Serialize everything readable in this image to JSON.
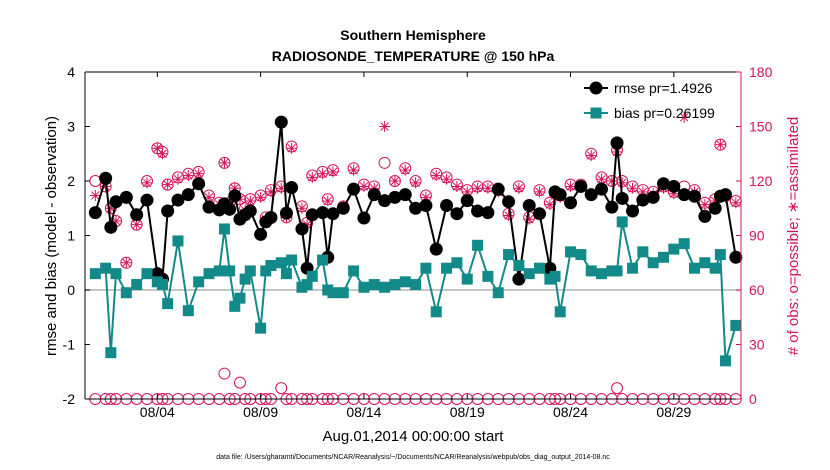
{
  "chart_data": {
    "type": "line",
    "title": "Southern Hemisphere",
    "subtitle": "RADIOSONDE_TEMPERATURE @ 150 hPa",
    "xlabel": "Aug.01,2014 00:00:00 start",
    "ylabel": "rmse and bias (model - observation)",
    "ylabel_right": "# of obs: o=possible; ∗=assimilated",
    "footnote": "data file: /Users/gharamti/Documents/NCAR/Reanalysis/~/Documents/NCAR/Reanalysis/webpub/obs_diag_output_2014-08.nc",
    "xlim": [
      0.5,
      32.25
    ],
    "ylim": [
      -2,
      4
    ],
    "ylim_right": [
      0,
      180
    ],
    "x_ticks": [
      4,
      9,
      14,
      19,
      24,
      29
    ],
    "x_tick_labels": [
      "08/04",
      "08/09",
      "08/14",
      "08/19",
      "08/24",
      "08/29"
    ],
    "y_ticks": [
      -2,
      -1,
      0,
      1,
      2,
      3,
      4
    ],
    "y_tick_labels": [
      "-2",
      "-1",
      "0",
      "1",
      "2",
      "3",
      "4"
    ],
    "y2_ticks": [
      0,
      30,
      60,
      90,
      120,
      150,
      180
    ],
    "y2_tick_labels": [
      "0",
      "30",
      "60",
      "90",
      "120",
      "150",
      "180"
    ],
    "colors": {
      "rmse": "#000000",
      "bias": "#138a8a",
      "obs": "#d4145a",
      "zero_line": "#b3b3b3"
    },
    "series": [
      {
        "name": "rmse",
        "legend": "rmse pr=1.4926",
        "color": "#000000",
        "marker": "circle",
        "x": [
          1.0,
          1.5,
          1.75,
          2.0,
          2.5,
          3.0,
          3.5,
          4.0,
          4.25,
          4.5,
          5.0,
          5.5,
          6.0,
          6.5,
          7.0,
          7.25,
          7.5,
          7.75,
          8.0,
          8.25,
          8.5,
          9.0,
          9.25,
          9.5,
          10.0,
          10.25,
          10.5,
          11.0,
          11.25,
          11.5,
          12.0,
          12.25,
          12.5,
          13.0,
          13.5,
          14.0,
          14.5,
          15.0,
          15.5,
          16.0,
          16.5,
          17.0,
          17.5,
          18.0,
          18.5,
          19.0,
          19.5,
          20.0,
          20.5,
          21.0,
          21.5,
          22.0,
          22.5,
          23.0,
          23.25,
          23.5,
          24.0,
          24.5,
          25.0,
          25.5,
          26.0,
          26.25,
          26.5,
          27.0,
          27.5,
          28.0,
          28.5,
          29.0,
          29.5,
          30.0,
          30.5,
          31.0,
          31.25,
          31.5,
          32.0
        ],
        "values": [
          1.42,
          2.05,
          1.15,
          1.62,
          1.7,
          1.38,
          1.65,
          0.3,
          0.2,
          1.45,
          1.65,
          1.75,
          1.95,
          1.52,
          1.47,
          1.58,
          1.48,
          1.73,
          1.3,
          1.38,
          1.45,
          1.02,
          1.25,
          1.33,
          3.08,
          1.41,
          1.88,
          1.12,
          0.4,
          1.38,
          1.42,
          0.6,
          1.4,
          1.5,
          1.85,
          1.32,
          1.75,
          1.64,
          1.7,
          1.75,
          1.5,
          1.55,
          0.75,
          1.55,
          1.4,
          1.64,
          1.45,
          1.42,
          1.85,
          1.62,
          0.2,
          1.55,
          1.4,
          0.4,
          1.8,
          1.75,
          1.6,
          1.9,
          1.75,
          1.85,
          1.52,
          2.7,
          1.68,
          1.45,
          1.65,
          1.7,
          1.95,
          1.9,
          1.75,
          1.72,
          1.35,
          1.5,
          1.72,
          1.75,
          0.6
        ]
      },
      {
        "name": "bias",
        "legend": "bias pr=0.26199",
        "color": "#138a8a",
        "marker": "square",
        "x": [
          1.0,
          1.5,
          1.75,
          2.0,
          2.5,
          3.0,
          3.5,
          4.0,
          4.25,
          4.5,
          5.0,
          5.5,
          6.0,
          6.5,
          7.0,
          7.25,
          7.5,
          7.75,
          8.0,
          8.25,
          8.5,
          9.0,
          9.25,
          9.5,
          10.0,
          10.25,
          10.5,
          11.0,
          11.25,
          11.5,
          12.0,
          12.25,
          12.5,
          13.0,
          13.5,
          14.0,
          14.5,
          15.0,
          15.5,
          16.0,
          16.5,
          17.0,
          17.5,
          18.0,
          18.5,
          19.0,
          19.5,
          20.0,
          20.5,
          21.0,
          21.5,
          22.0,
          22.5,
          23.0,
          23.25,
          23.5,
          24.0,
          24.5,
          25.0,
          25.5,
          26.0,
          26.25,
          26.5,
          27.0,
          27.5,
          28.0,
          28.5,
          29.0,
          29.5,
          30.0,
          30.5,
          31.0,
          31.25,
          31.5,
          32.0
        ],
        "values": [
          0.3,
          0.4,
          -1.15,
          0.3,
          -0.05,
          0.1,
          0.3,
          0.15,
          0.1,
          -0.25,
          0.9,
          -0.38,
          0.15,
          0.3,
          0.35,
          1.12,
          0.35,
          -0.3,
          -0.15,
          0.2,
          0.35,
          -0.7,
          0.35,
          0.45,
          0.5,
          0.3,
          0.55,
          0.05,
          0.1,
          0.25,
          0.55,
          0.0,
          -0.05,
          -0.05,
          0.35,
          0.05,
          0.1,
          0.05,
          0.1,
          0.15,
          0.1,
          0.4,
          -0.4,
          0.4,
          0.5,
          0.2,
          0.82,
          0.25,
          -0.05,
          0.65,
          0.45,
          0.3,
          0.4,
          0.2,
          0.25,
          -0.4,
          0.7,
          0.65,
          0.35,
          0.3,
          0.35,
          0.35,
          1.25,
          0.4,
          0.7,
          0.5,
          0.6,
          0.75,
          0.85,
          0.4,
          0.5,
          0.4,
          0.65,
          -1.3,
          -0.65
        ]
      },
      {
        "name": "obs_possible",
        "color": "#d4145a",
        "marker": "open-circle",
        "x": [
          1.0,
          1.5,
          1.75,
          2.0,
          2.5,
          3.0,
          3.5,
          4.0,
          4.25,
          4.5,
          5.0,
          5.5,
          6.0,
          6.5,
          7.0,
          7.25,
          7.5,
          7.75,
          8.0,
          8.25,
          8.5,
          9.0,
          9.25,
          9.5,
          10.0,
          10.25,
          10.5,
          11.0,
          11.25,
          11.5,
          12.0,
          12.25,
          12.5,
          13.0,
          13.5,
          14.0,
          14.5,
          15.0,
          15.5,
          16.0,
          16.5,
          17.0,
          17.5,
          18.0,
          18.5,
          19.0,
          19.5,
          20.0,
          20.5,
          21.0,
          21.5,
          22.0,
          22.5,
          23.0,
          23.25,
          23.5,
          24.0,
          24.5,
          25.0,
          25.5,
          26.0,
          26.25,
          26.5,
          27.0,
          27.5,
          28.0,
          28.5,
          29.0,
          29.5,
          30.0,
          30.5,
          31.0,
          31.25,
          31.5,
          32.0
        ],
        "values": [
          120,
          117,
          105,
          98,
          75,
          96,
          120,
          138,
          136,
          118,
          122,
          124,
          125,
          112,
          108,
          130,
          108,
          116,
          110,
          105,
          110,
          112,
          100,
          115,
          117,
          100,
          139,
          106,
          97,
          123,
          125,
          110,
          126,
          106,
          127,
          118,
          117,
          130,
          120,
          127,
          120,
          112,
          124,
          122,
          118,
          115,
          117,
          117,
          115,
          102,
          117,
          100,
          115,
          108,
          113,
          112,
          118,
          118,
          135,
          122,
          120,
          137,
          120,
          117,
          115,
          114,
          117,
          114,
          117,
          115,
          108,
          110,
          140,
          112,
          109
        ]
      },
      {
        "name": "obs_assimilated",
        "color": "#d4145a",
        "marker": "asterisk",
        "x": [
          1.0,
          1.5,
          1.75,
          2.0,
          2.5,
          3.0,
          3.5,
          4.0,
          4.25,
          4.5,
          5.0,
          5.5,
          6.0,
          6.5,
          7.0,
          7.25,
          7.5,
          7.75,
          8.0,
          8.25,
          8.5,
          9.0,
          9.25,
          9.5,
          10.0,
          10.25,
          10.5,
          11.0,
          11.25,
          11.5,
          12.0,
          12.25,
          12.5,
          13.0,
          13.5,
          14.0,
          14.5,
          15.0,
          15.5,
          16.0,
          16.5,
          17.0,
          17.5,
          18.0,
          18.5,
          19.0,
          19.5,
          20.0,
          20.5,
          21.0,
          21.5,
          22.0,
          22.5,
          23.0,
          23.25,
          23.5,
          24.0,
          24.5,
          25.0,
          25.5,
          26.0,
          26.25,
          26.5,
          27.0,
          27.5,
          28.0,
          28.5,
          29.0,
          29.5,
          30.0,
          30.5,
          31.0,
          31.25,
          31.5,
          32.0
        ],
        "values": [
          112,
          117,
          105,
          98,
          75,
          96,
          119,
          138,
          135,
          118,
          121,
          123,
          124,
          111,
          107,
          130,
          108,
          116,
          110,
          104,
          109,
          111,
          99,
          114,
          116,
          100,
          138,
          105,
          96,
          122,
          124,
          109,
          125,
          106,
          126,
          117,
          116,
          150,
          120,
          126,
          119,
          111,
          123,
          121,
          117,
          114,
          116,
          116,
          114,
          101,
          116,
          99,
          114,
          107,
          112,
          111,
          117,
          117,
          134,
          121,
          120,
          136,
          119,
          116,
          114,
          113,
          116,
          113,
          155,
          114,
          107,
          109,
          140,
          111,
          108
        ]
      },
      {
        "name": "obs_bottom_possible",
        "color": "#d4145a",
        "marker": "open-circle",
        "x": [
          1.0,
          1.5,
          1.75,
          2.0,
          2.5,
          3.0,
          3.5,
          4.0,
          4.25,
          4.5,
          5.0,
          5.5,
          6.0,
          6.5,
          7.0,
          7.25,
          7.5,
          7.75,
          8.0,
          8.25,
          8.5,
          9.0,
          9.25,
          9.5,
          10.0,
          10.25,
          10.5,
          11.0,
          11.25,
          11.5,
          12.0,
          12.25,
          12.5,
          13.0,
          13.5,
          14.0,
          14.5,
          15.0,
          15.5,
          16.0,
          16.5,
          17.0,
          17.5,
          18.0,
          18.5,
          19.0,
          19.5,
          20.0,
          20.5,
          21.0,
          21.5,
          22.0,
          22.5,
          23.0,
          23.25,
          23.5,
          24.0,
          24.5,
          25.0,
          25.5,
          26.0,
          26.25,
          26.5,
          27.0,
          27.5,
          28.0,
          28.5,
          29.0,
          29.5,
          30.0,
          30.5,
          31.0,
          31.25,
          31.5,
          32.0
        ],
        "values": [
          0,
          0,
          0,
          0,
          0,
          0,
          0,
          0,
          0,
          0,
          0,
          0,
          0,
          0,
          0,
          14,
          0,
          0,
          9,
          0,
          0,
          0,
          0,
          0,
          6,
          0,
          0,
          0,
          0,
          0,
          0,
          0,
          0,
          0,
          0,
          0,
          0,
          0,
          0,
          0,
          0,
          0,
          0,
          0,
          0,
          0,
          0,
          0,
          0,
          0,
          0,
          0,
          0,
          0,
          0,
          0,
          0,
          0,
          0,
          0,
          0,
          6,
          0,
          0,
          0,
          0,
          0,
          0,
          0,
          0,
          0,
          0,
          0,
          0,
          0
        ]
      }
    ]
  }
}
